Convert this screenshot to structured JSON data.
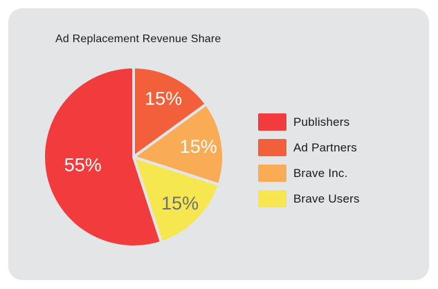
{
  "theme": {
    "page_background": "#ffffff",
    "card_background": "#e4e5e6",
    "text_color": "#1a1a1a"
  },
  "chart_data": {
    "type": "pie",
    "title": "Ad Replacement Revenue Share",
    "legend_position": "right",
    "start_angle": "top",
    "direction": "clockwise",
    "slice_gap_color": "#e4e5e6",
    "slices_clockwise_from_top": [
      {
        "label": "Ad Partners",
        "value": 15,
        "value_label": "15%",
        "color": "#f15f3b",
        "value_label_color": "#ffffff"
      },
      {
        "label": "Brave Inc.",
        "value": 15,
        "value_label": "15%",
        "color": "#f9ac55",
        "value_label_color": "#ffffff"
      },
      {
        "label": "Brave Users",
        "value": 15,
        "value_label": "15%",
        "color": "#f6e64f",
        "value_label_color": "#6e7072"
      },
      {
        "label": "Publishers",
        "value": 55,
        "value_label": "55%",
        "color": "#f23b3c",
        "value_label_color": "#ffffff"
      }
    ],
    "legend": [
      {
        "label": "Publishers",
        "color": "#f23b3c"
      },
      {
        "label": "Ad Partners",
        "color": "#f15f3b"
      },
      {
        "label": "Brave Inc.",
        "color": "#f9ac55"
      },
      {
        "label": "Brave Users",
        "color": "#f6e64f"
      }
    ]
  }
}
